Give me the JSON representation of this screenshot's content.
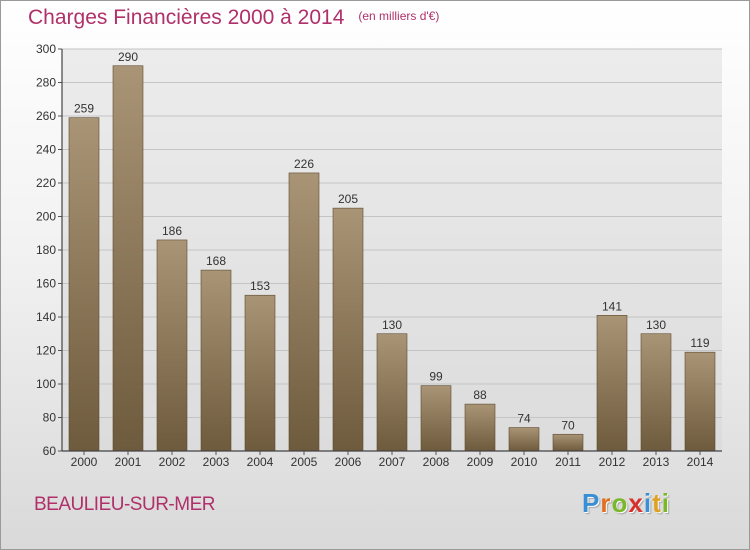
{
  "header": {
    "title": "Charges Financières 2000 à 2014",
    "unit": "(en milliers d'€)"
  },
  "footer": {
    "city": "BEAULIEU-SUR-MER",
    "logo": [
      "P",
      "r",
      "o",
      "x",
      "i",
      "t",
      "i"
    ],
    "logo_colors": [
      "#3a8fd4",
      "#e07020",
      "#7ab829",
      "#d8312c",
      "#3a8fd4",
      "#e0a020",
      "#7ab829"
    ]
  },
  "chart_data": {
    "type": "bar",
    "title": "Charges Financières 2000 à 2014",
    "subtitle": "(en milliers d'€)",
    "categories": [
      "2000",
      "2001",
      "2002",
      "2003",
      "2004",
      "2005",
      "2006",
      "2007",
      "2008",
      "2009",
      "2010",
      "2011",
      "2012",
      "2013",
      "2014"
    ],
    "values": [
      259,
      290,
      186,
      168,
      153,
      226,
      205,
      130,
      99,
      88,
      74,
      70,
      141,
      130,
      119
    ],
    "ylim": [
      60,
      300
    ],
    "yticks": [
      60,
      80,
      100,
      120,
      140,
      160,
      180,
      200,
      220,
      240,
      260,
      280,
      300
    ],
    "grid": true,
    "legend": "none",
    "bar_color_top": "#a99576",
    "bar_color_bottom": "#6e5a3c"
  }
}
